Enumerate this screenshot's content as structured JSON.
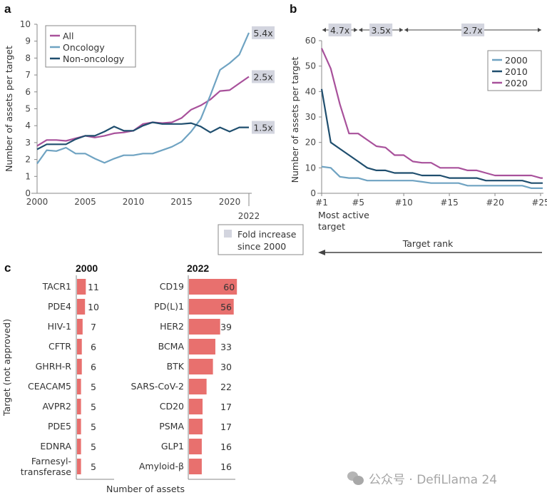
{
  "chart_data": [
    {
      "panel": "a",
      "type": "line",
      "title": "",
      "xlabel": "",
      "ylabel": "Number of assets per target",
      "x": [
        2000,
        2001,
        2002,
        2003,
        2004,
        2005,
        2006,
        2007,
        2008,
        2009,
        2010,
        2011,
        2012,
        2013,
        2014,
        2015,
        2016,
        2017,
        2018,
        2019,
        2020,
        2021,
        2022
      ],
      "xticks": [
        "2000",
        "2005",
        "2010",
        "2015",
        "2020"
      ],
      "xtick_values": [
        2000,
        2005,
        2010,
        2015,
        2020
      ],
      "extra_xtick": "2022",
      "yticks": [
        "0",
        "1",
        "2",
        "3",
        "4",
        "5",
        "6",
        "7",
        "8",
        "9",
        "10"
      ],
      "ylim": [
        0,
        10
      ],
      "xlim": [
        2000,
        2022
      ],
      "legend": "top-left",
      "series": [
        {
          "name": "All",
          "color": "#a8519b",
          "values": [
            2.8,
            3.15,
            3.15,
            3.1,
            3.25,
            3.4,
            3.3,
            3.4,
            3.55,
            3.6,
            3.7,
            4.1,
            4.2,
            4.15,
            4.2,
            4.45,
            4.95,
            5.2,
            5.55,
            6.05,
            6.1,
            6.5,
            6.9
          ],
          "annotation": "2.5x"
        },
        {
          "name": "Oncology",
          "color": "#6fa3c2",
          "values": [
            1.75,
            2.55,
            2.5,
            2.7,
            2.35,
            2.35,
            2.05,
            1.8,
            2.05,
            2.25,
            2.25,
            2.35,
            2.35,
            2.55,
            2.75,
            3.05,
            3.65,
            4.4,
            5.8,
            7.3,
            7.7,
            8.2,
            9.5
          ],
          "annotation": "5.4x"
        },
        {
          "name": "Non-oncology",
          "color": "#1f4e6e",
          "values": [
            2.6,
            2.9,
            2.9,
            2.9,
            3.2,
            3.4,
            3.4,
            3.65,
            3.95,
            3.7,
            3.7,
            4.0,
            4.2,
            4.1,
            4.1,
            4.1,
            4.15,
            3.95,
            3.6,
            3.9,
            3.65,
            3.9,
            3.9
          ],
          "annotation": "1.5x"
        }
      ],
      "fold_legend": {
        "label_line1": "Fold increase",
        "label_line2": "since 2000",
        "color": "#d3d5df"
      }
    },
    {
      "panel": "b",
      "type": "line",
      "ylabel": "Number of assets per target",
      "xlabel": "Target rank",
      "x_note_line1": "Most active",
      "x_note_line2": "target",
      "x": [
        1,
        2,
        3,
        4,
        5,
        6,
        7,
        8,
        9,
        10,
        11,
        12,
        13,
        14,
        15,
        16,
        17,
        18,
        19,
        20,
        21,
        22,
        23,
        24,
        25,
        26
      ],
      "xticks": [
        "#1",
        "#5",
        "#10",
        "#15",
        "#20",
        "#25"
      ],
      "xtick_values": [
        1,
        5,
        10,
        15,
        20,
        25
      ],
      "yticks": [
        "0",
        "10",
        "20",
        "30",
        "40",
        "50",
        "60"
      ],
      "ylim": [
        0,
        60
      ],
      "xlim": [
        1,
        26
      ],
      "legend": "top-right",
      "series": [
        {
          "name": "2000",
          "color": "#6fa3c2",
          "values": [
            10.5,
            10,
            6.5,
            6,
            6,
            5,
            5,
            5,
            5,
            5,
            5,
            4.5,
            4,
            4,
            4,
            4,
            3,
            3,
            3,
            3,
            3,
            3,
            3,
            2,
            2,
            2
          ]
        },
        {
          "name": "2010",
          "color": "#1f4e6e",
          "values": [
            41,
            20,
            17.5,
            15,
            12.5,
            10,
            9,
            9,
            8,
            8,
            8,
            7,
            7,
            7,
            6,
            6,
            6,
            6,
            5,
            5,
            5,
            5,
            5,
            4,
            4,
            4
          ]
        },
        {
          "name": "2020",
          "color": "#a8519b",
          "values": [
            57,
            49,
            35,
            23.5,
            23.5,
            21,
            18.5,
            18,
            15,
            15,
            12.5,
            12,
            12,
            10,
            10,
            10,
            9,
            9,
            8,
            7,
            7,
            7,
            7,
            7,
            6,
            6
          ]
        }
      ],
      "fold_ranges": [
        {
          "label": "4.7x",
          "from": 1,
          "to": 5
        },
        {
          "label": "3.5x",
          "from": 5,
          "to": 10
        },
        {
          "label": "2.7x",
          "from": 10,
          "to": 26
        }
      ]
    },
    {
      "panel": "c",
      "type": "bar",
      "ylabel": "Target (not approved)",
      "xlabel": "Number of assets",
      "bar_color": "#e8706e",
      "groups": [
        {
          "title": "2000",
          "categories": [
            "TACR1",
            "PDE4",
            "HIV-1",
            "CFTR",
            "GHRH-R",
            "CEACAM5",
            "AVPR2",
            "PDE5",
            "EDNRA",
            "Farnesyl-|transferase"
          ],
          "values": [
            11,
            10,
            7,
            6,
            6,
            5,
            5,
            5,
            5,
            5
          ]
        },
        {
          "title": "2022",
          "categories": [
            "CD19",
            "PD(L)1",
            "HER2",
            "BCMA",
            "BTK",
            "SARS-CoV-2",
            "CD20",
            "PSMA",
            "GLP1",
            "Amyloid-β"
          ],
          "values": [
            60,
            56,
            39,
            33,
            30,
            22,
            17,
            17,
            16,
            16
          ]
        }
      ]
    }
  ],
  "panel_labels": {
    "a": "a",
    "b": "b",
    "c": "c"
  },
  "watermark": {
    "text": "公众号 · DefiLlama 24",
    "icon": "wechat-icon"
  }
}
